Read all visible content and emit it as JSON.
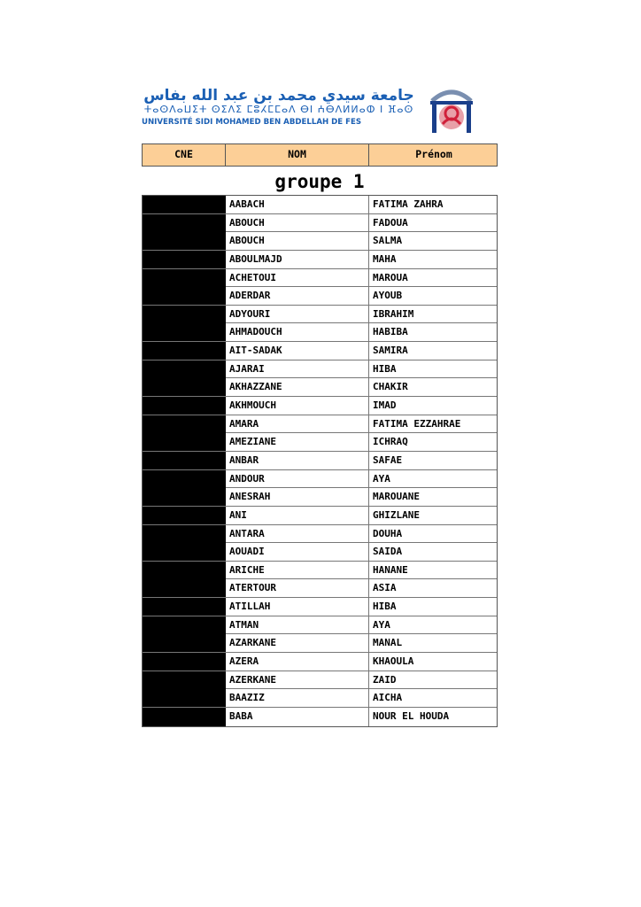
{
  "header": {
    "arabic_name": "جامعة سيدي محمد بن عبد الله بفاس",
    "tifinagh_name": "ⵜⴰⵙⴷⴰⵡⵉⵜ ⵙⵉⴷⵉ ⵎⵓⵃⵎⵎⴰⴷ ⴱⵏ ⵄⴱⴷⵍⵍⴰⵀ ⵏ ⴼⴰⵙ",
    "latin_name": "UNIVERSITÉ SIDI MOHAMED BEN ABDELLAH DE FES",
    "brand_color": "#1a5fb4"
  },
  "table_header": {
    "cne": "CNE",
    "nom": "NOM",
    "prenom": "Prénom",
    "background": "#fccf97"
  },
  "group_title": "groupe 1",
  "rows": [
    {
      "nom": "AABACH",
      "prenom": "FATIMA ZAHRA"
    },
    {
      "nom": "ABOUCH",
      "prenom": "FADOUA"
    },
    {
      "nom": "ABOUCH",
      "prenom": "SALMA"
    },
    {
      "nom": "ABOULMAJD",
      "prenom": "MAHA"
    },
    {
      "nom": "ACHETOUI",
      "prenom": "MAROUA"
    },
    {
      "nom": "ADERDAR",
      "prenom": "AYOUB"
    },
    {
      "nom": "ADYOURI",
      "prenom": "IBRAHIM"
    },
    {
      "nom": "AHMADOUCH",
      "prenom": "HABIBA"
    },
    {
      "nom": "AIT-SADAK",
      "prenom": "SAMIRA"
    },
    {
      "nom": "AJARAI",
      "prenom": "HIBA"
    },
    {
      "nom": "AKHAZZANE",
      "prenom": "CHAKIR"
    },
    {
      "nom": "AKHMOUCH",
      "prenom": "IMAD"
    },
    {
      "nom": "AMARA",
      "prenom": "FATIMA EZZAHRAE"
    },
    {
      "nom": "AMEZIANE",
      "prenom": "ICHRAQ"
    },
    {
      "nom": "ANBAR",
      "prenom": "SAFAE"
    },
    {
      "nom": "ANDOUR",
      "prenom": "AYA"
    },
    {
      "nom": "ANESRAH",
      "prenom": "MAROUANE"
    },
    {
      "nom": "ANI",
      "prenom": "GHIZLANE"
    },
    {
      "nom": "ANTARA",
      "prenom": "DOUHA"
    },
    {
      "nom": "AOUADI",
      "prenom": "SAIDA"
    },
    {
      "nom": "ARICHE",
      "prenom": "HANANE"
    },
    {
      "nom": "ATERTOUR",
      "prenom": "ASIA"
    },
    {
      "nom": "ATILLAH",
      "prenom": "HIBA"
    },
    {
      "nom": "ATMAN",
      "prenom": "AYA"
    },
    {
      "nom": "AZARKANE",
      "prenom": "MANAL"
    },
    {
      "nom": "AZERA",
      "prenom": "KHAOULA"
    },
    {
      "nom": "AZERKANE",
      "prenom": "ZAID"
    },
    {
      "nom": "BAAZIZ",
      "prenom": "AICHA"
    },
    {
      "nom": "BABA",
      "prenom": "NOUR EL HOUDA"
    }
  ]
}
